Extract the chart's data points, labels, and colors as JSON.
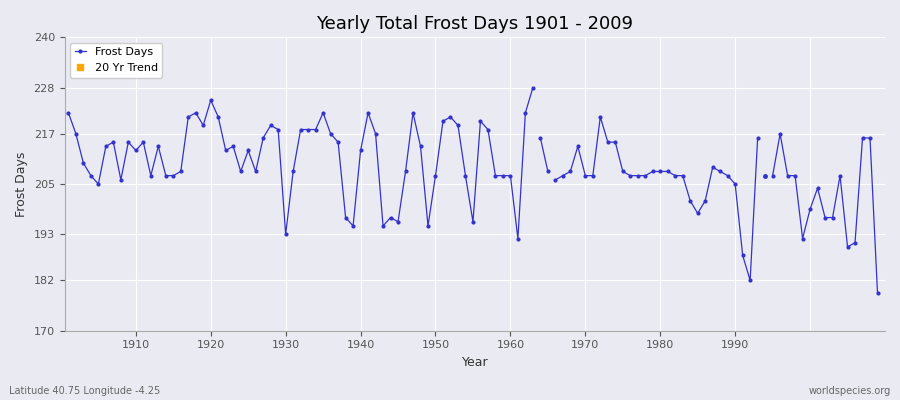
{
  "title": "Yearly Total Frost Days 1901 - 2009",
  "xlabel": "Year",
  "ylabel": "Frost Days",
  "subtitle": "Latitude 40.75 Longitude -4.25",
  "watermark": "worldspecies.org",
  "ylim": [
    170,
    240
  ],
  "yticks": [
    170,
    182,
    193,
    205,
    217,
    228,
    240
  ],
  "line_color": "#3333cc",
  "trend_color": "#FFA500",
  "bg_color": "#eaeaf2",
  "grid_color": "#ffffff",
  "xlim_left": 1901,
  "xlim_right": 2010,
  "years": [
    1901,
    1902,
    1903,
    1904,
    1905,
    1906,
    1907,
    1908,
    1909,
    1910,
    1911,
    1912,
    1913,
    1914,
    1915,
    1916,
    1917,
    1918,
    1919,
    1920,
    1921,
    1922,
    1923,
    1924,
    1925,
    1926,
    1927,
    1928,
    1929,
    1930,
    1931,
    1932,
    1933,
    1934,
    1935,
    1936,
    1937,
    1938,
    1939,
    1940,
    1941,
    1942,
    1943,
    1944,
    1945,
    1946,
    1947,
    1948,
    1949,
    1950,
    1951,
    1952,
    1953,
    1954,
    1955,
    1956,
    1957,
    1958,
    1959,
    1960,
    1961,
    1962,
    1963,
    1964,
    1965,
    1966,
    1967,
    1968,
    1969,
    1970,
    1971,
    1972,
    1973,
    1974,
    1975,
    1976,
    1977,
    1978,
    1979,
    1980,
    1981,
    1982,
    1983,
    1984,
    1985,
    1986,
    1987,
    1988,
    1989,
    1990,
    1991,
    1992,
    1993,
    1994,
    1995,
    1996,
    1997,
    1998,
    1999,
    2000,
    2001,
    2002,
    2003,
    2004,
    2005,
    2006,
    2007,
    2008,
    2009
  ],
  "values": [
    222,
    217,
    210,
    207,
    205,
    214,
    215,
    206,
    215,
    213,
    215,
    207,
    214,
    207,
    207,
    208,
    221,
    222,
    219,
    225,
    221,
    213,
    214,
    208,
    213,
    208,
    216,
    219,
    218,
    193,
    208,
    218,
    218,
    218,
    222,
    217,
    215,
    197,
    195,
    213,
    222,
    217,
    195,
    197,
    196,
    208,
    222,
    214,
    195,
    207,
    220,
    221,
    219,
    207,
    196,
    220,
    218,
    207,
    207,
    207,
    192,
    222,
    228,
    216,
    208,
    206,
    207,
    208,
    214,
    207,
    207,
    221,
    215,
    215,
    208,
    207,
    207,
    207,
    208,
    208,
    208,
    207,
    207,
    201,
    198,
    201,
    209,
    208,
    207,
    205,
    188,
    182,
    216,
    207,
    207,
    217,
    207,
    207,
    192,
    199,
    204,
    197,
    197,
    207,
    190,
    191,
    216,
    216,
    179
  ],
  "segments": [
    [
      1901,
      1902,
      1903,
      1904,
      1905,
      1906,
      1907,
      1908,
      1909,
      1910,
      1911,
      1912,
      1913,
      1914,
      1915,
      1916,
      1917,
      1918,
      1919,
      1920,
      1921,
      1922,
      1923,
      1924,
      1925,
      1926,
      1927,
      1928,
      1929,
      1930,
      1931,
      1932,
      1933,
      1934,
      1935,
      1936,
      1937,
      1938,
      1939,
      1940,
      1941,
      1942,
      1943,
      1944,
      1945,
      1946,
      1947,
      1948,
      1949,
      1950,
      1951,
      1952,
      1953,
      1954,
      1955,
      1956,
      1957,
      1958,
      1959,
      1960,
      1961,
      1962,
      1963
    ],
    [
      1964,
      1965
    ],
    [
      1966,
      1967,
      1968,
      1969,
      1970,
      1971,
      1972,
      1973,
      1974,
      1975,
      1976,
      1977,
      1978,
      1979,
      1980,
      1981,
      1982,
      1983,
      1984,
      1985,
      1986,
      1987,
      1988,
      1989,
      1990,
      1991,
      1992,
      1993
    ],
    [
      1994
    ],
    [
      1995,
      1996,
      1997,
      1998,
      1999,
      2000,
      2001,
      2002,
      2003,
      2004,
      2005,
      2006,
      2007,
      2008,
      2009
    ]
  ]
}
